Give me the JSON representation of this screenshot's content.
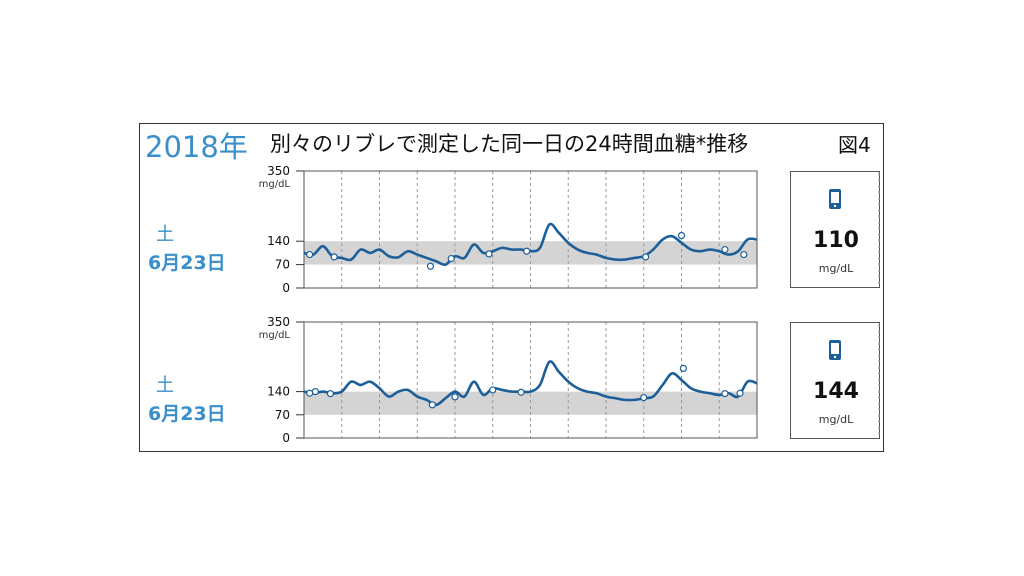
{
  "header": {
    "year": "2018年",
    "title": "別々のリブレで測定した同一日の24時間血糖*推移",
    "figure_label": "図4"
  },
  "panels": [
    {
      "day_of_week": "土",
      "date": "6月23日",
      "reading": {
        "value": "110",
        "unit": "mg/dL",
        "icon": "phone-icon"
      }
    },
    {
      "day_of_week": "土",
      "date": "6月23日",
      "reading": {
        "value": "144",
        "unit": "mg/dL",
        "icon": "phone-icon"
      }
    }
  ],
  "colors": {
    "accent": "#3a8fca",
    "line": "#1d5f99",
    "target_band": "#d4d4d4"
  },
  "chart_data": [
    {
      "type": "line",
      "title": "",
      "ylabel": "mg/dL",
      "ylim": [
        0,
        350
      ],
      "yticks": [
        0,
        70,
        140,
        350
      ],
      "xlim": [
        0,
        24
      ],
      "target_range": [
        70,
        140
      ],
      "grid": "vertical dashed every 2h",
      "series": [
        {
          "x": [
            0,
            0.5,
            1,
            1.5,
            2,
            2.5,
            3,
            3.5,
            4,
            4.5,
            5,
            5.5,
            6,
            6.5,
            7,
            7.5,
            8,
            8.5,
            9,
            9.5,
            10,
            10.5,
            11,
            11.5,
            12,
            12.5,
            13,
            13.5,
            14,
            14.5,
            15,
            15.5,
            16,
            16.5,
            17,
            17.5,
            18,
            18.5,
            19,
            19.5,
            20,
            20.5,
            21,
            21.5,
            22,
            22.5,
            23,
            23.5,
            24
          ],
          "y": [
            105,
            100,
            125,
            95,
            90,
            85,
            115,
            105,
            115,
            95,
            92,
            110,
            100,
            90,
            80,
            70,
            95,
            90,
            130,
            105,
            110,
            120,
            115,
            115,
            110,
            120,
            190,
            165,
            135,
            115,
            105,
            100,
            90,
            85,
            85,
            90,
            95,
            115,
            145,
            155,
            135,
            115,
            110,
            115,
            110,
            100,
            110,
            145,
            145
          ]
        }
      ],
      "markers": [
        {
          "x": 0.3,
          "y": 100
        },
        {
          "x": 1.6,
          "y": 93
        },
        {
          "x": 6.7,
          "y": 65
        },
        {
          "x": 7.8,
          "y": 88
        },
        {
          "x": 9.8,
          "y": 102
        },
        {
          "x": 11.8,
          "y": 110
        },
        {
          "x": 18.1,
          "y": 93
        },
        {
          "x": 20.0,
          "y": 157
        },
        {
          "x": 22.3,
          "y": 115
        },
        {
          "x": 23.3,
          "y": 100
        }
      ]
    },
    {
      "type": "line",
      "title": "",
      "ylabel": "mg/dL",
      "ylim": [
        0,
        350
      ],
      "yticks": [
        0,
        70,
        140,
        350
      ],
      "xlim": [
        0,
        24
      ],
      "target_range": [
        70,
        140
      ],
      "grid": "vertical dashed every 2h",
      "series": [
        {
          "x": [
            0,
            0.5,
            1,
            1.5,
            2,
            2.5,
            3,
            3.5,
            4,
            4.5,
            5,
            5.5,
            6,
            6.5,
            7,
            7.5,
            8,
            8.5,
            9,
            9.5,
            10,
            10.5,
            11,
            11.5,
            12,
            12.5,
            13,
            13.5,
            14,
            14.5,
            15,
            15.5,
            16,
            16.5,
            17,
            17.5,
            18,
            18.5,
            19,
            19.5,
            20,
            20.5,
            21,
            21.5,
            22,
            22.5,
            23,
            23.5,
            24
          ],
          "y": [
            140,
            135,
            140,
            135,
            140,
            170,
            160,
            170,
            150,
            125,
            140,
            145,
            125,
            115,
            100,
            120,
            140,
            125,
            170,
            130,
            150,
            145,
            140,
            140,
            140,
            160,
            230,
            200,
            170,
            150,
            140,
            135,
            125,
            120,
            115,
            115,
            120,
            125,
            160,
            195,
            175,
            150,
            140,
            135,
            130,
            135,
            125,
            170,
            165
          ]
        }
      ],
      "markers": [
        {
          "x": 0.3,
          "y": 135
        },
        {
          "x": 0.6,
          "y": 140
        },
        {
          "x": 1.4,
          "y": 134
        },
        {
          "x": 6.8,
          "y": 100
        },
        {
          "x": 8.0,
          "y": 124
        },
        {
          "x": 10.0,
          "y": 145
        },
        {
          "x": 11.5,
          "y": 138
        },
        {
          "x": 18.0,
          "y": 122
        },
        {
          "x": 20.1,
          "y": 210
        },
        {
          "x": 22.3,
          "y": 134
        },
        {
          "x": 23.1,
          "y": 135
        }
      ]
    }
  ]
}
